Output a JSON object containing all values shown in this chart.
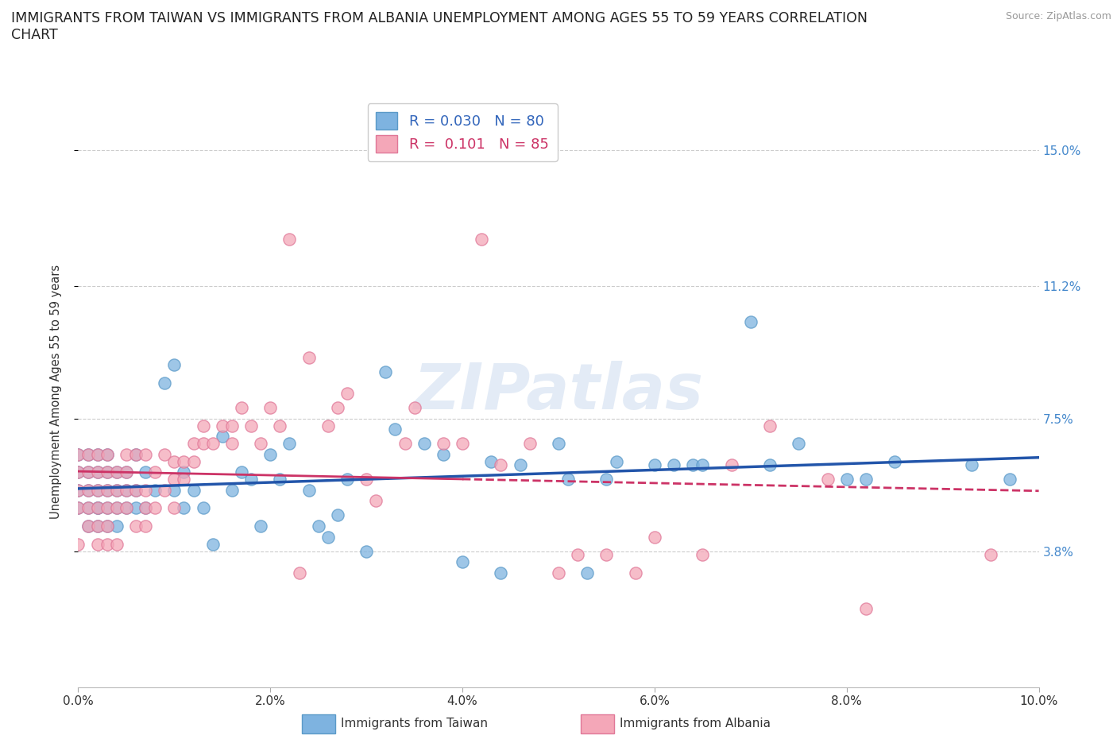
{
  "title": "IMMIGRANTS FROM TAIWAN VS IMMIGRANTS FROM ALBANIA UNEMPLOYMENT AMONG AGES 55 TO 59 YEARS CORRELATION\nCHART",
  "source_text": "Source: ZipAtlas.com",
  "ylabel": "Unemployment Among Ages 55 to 59 years",
  "xlim": [
    0.0,
    0.1
  ],
  "ylim": [
    0.0,
    0.165
  ],
  "yticks": [
    0.038,
    0.075,
    0.112,
    0.15
  ],
  "ytick_labels": [
    "3.8%",
    "7.5%",
    "11.2%",
    "15.0%"
  ],
  "xticks": [
    0.0,
    0.02,
    0.04,
    0.06,
    0.08,
    0.1
  ],
  "xtick_labels": [
    "0.0%",
    "2.0%",
    "4.0%",
    "6.0%",
    "8.0%",
    "10.0%"
  ],
  "taiwan_color": "#7EB3E0",
  "taiwan_edge_color": "#5B9AC8",
  "albania_color": "#F4A7B8",
  "albania_edge_color": "#E07898",
  "taiwan_R": 0.03,
  "taiwan_N": 80,
  "albania_R": 0.101,
  "albania_N": 85,
  "taiwan_line_color": "#2255AA",
  "albania_line_color": "#CC3366",
  "watermark": "ZIPatlas",
  "taiwan_x": [
    0.0,
    0.0,
    0.0,
    0.0,
    0.001,
    0.001,
    0.001,
    0.001,
    0.001,
    0.002,
    0.002,
    0.002,
    0.002,
    0.002,
    0.002,
    0.003,
    0.003,
    0.003,
    0.003,
    0.003,
    0.004,
    0.004,
    0.004,
    0.004,
    0.005,
    0.005,
    0.005,
    0.006,
    0.006,
    0.006,
    0.007,
    0.007,
    0.008,
    0.009,
    0.01,
    0.01,
    0.011,
    0.011,
    0.012,
    0.013,
    0.014,
    0.015,
    0.016,
    0.017,
    0.018,
    0.019,
    0.02,
    0.021,
    0.022,
    0.024,
    0.025,
    0.026,
    0.027,
    0.028,
    0.03,
    0.032,
    0.033,
    0.036,
    0.038,
    0.04,
    0.043,
    0.044,
    0.046,
    0.05,
    0.051,
    0.053,
    0.055,
    0.056,
    0.06,
    0.062,
    0.064,
    0.065,
    0.07,
    0.072,
    0.075,
    0.08,
    0.082,
    0.085,
    0.093,
    0.097
  ],
  "taiwan_y": [
    0.055,
    0.06,
    0.065,
    0.05,
    0.045,
    0.05,
    0.055,
    0.06,
    0.065,
    0.05,
    0.055,
    0.06,
    0.065,
    0.045,
    0.05,
    0.05,
    0.055,
    0.06,
    0.045,
    0.065,
    0.05,
    0.055,
    0.06,
    0.045,
    0.05,
    0.055,
    0.06,
    0.05,
    0.055,
    0.065,
    0.05,
    0.06,
    0.055,
    0.085,
    0.09,
    0.055,
    0.05,
    0.06,
    0.055,
    0.05,
    0.04,
    0.07,
    0.055,
    0.06,
    0.058,
    0.045,
    0.065,
    0.058,
    0.068,
    0.055,
    0.045,
    0.042,
    0.048,
    0.058,
    0.038,
    0.088,
    0.072,
    0.068,
    0.065,
    0.035,
    0.063,
    0.032,
    0.062,
    0.068,
    0.058,
    0.032,
    0.058,
    0.063,
    0.062,
    0.062,
    0.062,
    0.062,
    0.102,
    0.062,
    0.068,
    0.058,
    0.058,
    0.063,
    0.062,
    0.058
  ],
  "albania_x": [
    0.0,
    0.0,
    0.0,
    0.0,
    0.0,
    0.001,
    0.001,
    0.001,
    0.001,
    0.001,
    0.002,
    0.002,
    0.002,
    0.002,
    0.002,
    0.002,
    0.003,
    0.003,
    0.003,
    0.003,
    0.003,
    0.003,
    0.004,
    0.004,
    0.004,
    0.004,
    0.005,
    0.005,
    0.005,
    0.005,
    0.006,
    0.006,
    0.006,
    0.007,
    0.007,
    0.007,
    0.007,
    0.008,
    0.008,
    0.009,
    0.009,
    0.01,
    0.01,
    0.01,
    0.011,
    0.011,
    0.012,
    0.012,
    0.013,
    0.013,
    0.014,
    0.015,
    0.016,
    0.016,
    0.017,
    0.018,
    0.019,
    0.02,
    0.021,
    0.022,
    0.023,
    0.024,
    0.026,
    0.027,
    0.028,
    0.03,
    0.031,
    0.034,
    0.035,
    0.038,
    0.04,
    0.042,
    0.044,
    0.047,
    0.05,
    0.052,
    0.055,
    0.058,
    0.06,
    0.065,
    0.068,
    0.072,
    0.078,
    0.082,
    0.095
  ],
  "albania_y": [
    0.05,
    0.055,
    0.06,
    0.065,
    0.04,
    0.045,
    0.05,
    0.055,
    0.06,
    0.065,
    0.045,
    0.05,
    0.055,
    0.06,
    0.065,
    0.04,
    0.045,
    0.05,
    0.055,
    0.06,
    0.065,
    0.04,
    0.05,
    0.055,
    0.06,
    0.04,
    0.05,
    0.055,
    0.06,
    0.065,
    0.045,
    0.055,
    0.065,
    0.045,
    0.05,
    0.055,
    0.065,
    0.05,
    0.06,
    0.055,
    0.065,
    0.05,
    0.058,
    0.063,
    0.058,
    0.063,
    0.063,
    0.068,
    0.068,
    0.073,
    0.068,
    0.073,
    0.068,
    0.073,
    0.078,
    0.073,
    0.068,
    0.078,
    0.073,
    0.125,
    0.032,
    0.092,
    0.073,
    0.078,
    0.082,
    0.058,
    0.052,
    0.068,
    0.078,
    0.068,
    0.068,
    0.125,
    0.062,
    0.068,
    0.032,
    0.037,
    0.037,
    0.032,
    0.042,
    0.037,
    0.062,
    0.073,
    0.058,
    0.022,
    0.037
  ]
}
